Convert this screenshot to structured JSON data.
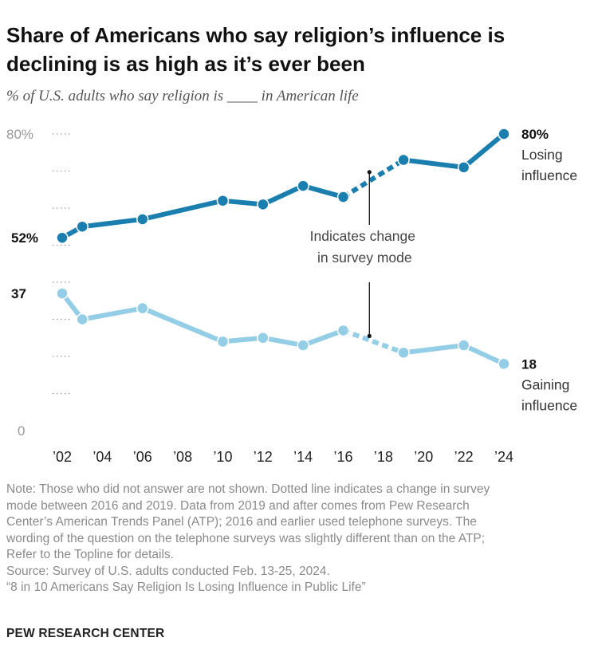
{
  "header": {
    "title": "Share of Americans who say religion’s influence is declining is as high as it’s ever been",
    "subtitle": "% of U.S. adults who say religion is ____ in American life"
  },
  "chart_data": {
    "type": "line",
    "x": [
      2002,
      2003,
      2006,
      2010,
      2012,
      2014,
      2016,
      2019,
      2022,
      2024
    ],
    "tick_labels": [
      "’02",
      "’04",
      "’06",
      "’08",
      "’10",
      "’12",
      "’14",
      "’16",
      "’18",
      "’20",
      "’22",
      "’24"
    ],
    "tick_years": [
      2002,
      2004,
      2006,
      2008,
      2010,
      2012,
      2014,
      2016,
      2018,
      2020,
      2022,
      2024
    ],
    "xlim": [
      2002,
      2024
    ],
    "ylim": [
      0,
      80
    ],
    "y_tick_labels": [
      {
        "value": 80,
        "label": "80%"
      },
      {
        "value": 0,
        "label": "0"
      }
    ],
    "mode_change_between": [
      2016,
      2019
    ],
    "series": [
      {
        "name": "Losing influence",
        "color": "#1a7fae",
        "values": [
          52,
          55,
          57,
          62,
          61,
          66,
          63,
          73,
          71,
          80
        ],
        "start_label": "52%",
        "end_value_label": "80%",
        "end_label_lines": [
          "Losing",
          "influence"
        ]
      },
      {
        "name": "Gaining influence",
        "color": "#93cde6",
        "values": [
          37,
          30,
          33,
          24,
          25,
          23,
          27,
          21,
          23,
          18
        ],
        "start_label": "37",
        "end_value_label": "18",
        "end_label_lines": [
          "Gaining",
          "influence"
        ]
      }
    ],
    "annotation": {
      "lines": [
        "Indicates change",
        "in survey mode"
      ]
    }
  },
  "notes": {
    "note_lines": [
      "Note: Those who did not answer are not shown. Dotted line indicates a change in survey",
      "mode between 2016 and 2019. Data from 2019 and after comes from Pew Research",
      "Center’s American Trends Panel (ATP); 2016 and earlier used telephone surveys. The",
      "wording of the question on the telephone surveys was slightly different than on the ATP;",
      "Refer to the Topline for details."
    ],
    "source": "Source: Survey of U.S. adults conducted Feb. 13-25, 2024.",
    "report": "“8 in 10 Americans Say Religion Is Losing Influence in Public Life”",
    "org": "PEW RESEARCH CENTER"
  }
}
